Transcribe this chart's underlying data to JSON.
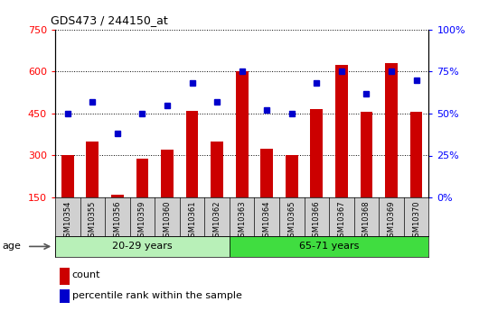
{
  "title": "GDS473 / 244150_at",
  "samples": [
    "GSM10354",
    "GSM10355",
    "GSM10356",
    "GSM10359",
    "GSM10360",
    "GSM10361",
    "GSM10362",
    "GSM10363",
    "GSM10364",
    "GSM10365",
    "GSM10366",
    "GSM10367",
    "GSM10368",
    "GSM10369",
    "GSM10370"
  ],
  "counts": [
    300,
    350,
    160,
    290,
    320,
    460,
    350,
    600,
    325,
    300,
    465,
    625,
    455,
    630,
    455
  ],
  "percentiles": [
    50,
    57,
    38,
    50,
    55,
    68,
    57,
    75,
    52,
    50,
    68,
    75,
    62,
    75,
    70
  ],
  "group1_label": "20-29 years",
  "group2_label": "65-71 years",
  "group1_count": 7,
  "group2_count": 8,
  "ylim_left": [
    150,
    750
  ],
  "ylim_right": [
    0,
    100
  ],
  "yticks_left": [
    150,
    300,
    450,
    600,
    750
  ],
  "yticks_right": [
    0,
    25,
    50,
    75,
    100
  ],
  "bar_color": "#cc0000",
  "dot_color": "#0000cc",
  "bg_color": "#d0d0d0",
  "group1_color": "#b8f0b8",
  "group2_color": "#40dd40",
  "legend_count_label": "count",
  "legend_pct_label": "percentile rank within the sample",
  "age_label": "age"
}
